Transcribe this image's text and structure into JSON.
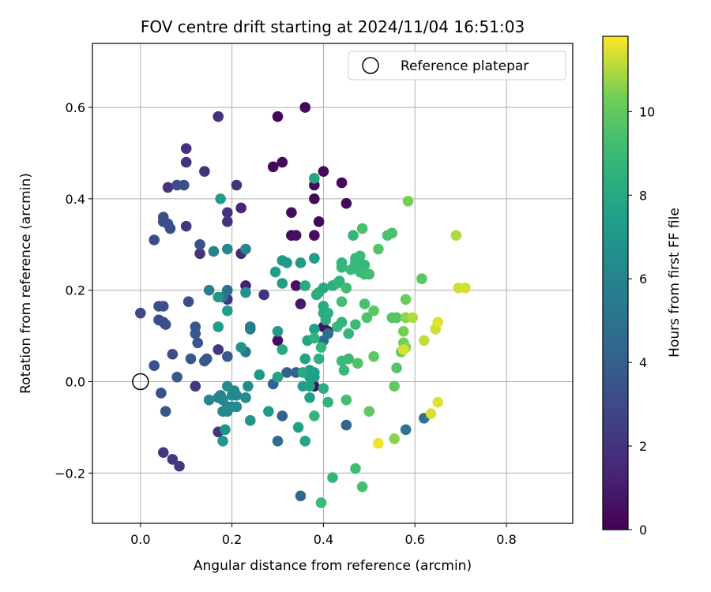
{
  "chart_data": {
    "type": "scatter",
    "title": "FOV centre drift starting at 2024/11/04 16:51:03",
    "xlabel": "Angular distance from reference (arcmin)",
    "ylabel": "Rotation from reference (arcmin)",
    "xlim": [
      -0.105,
      0.945
    ],
    "ylim": [
      -0.31,
      0.74
    ],
    "xticks": [
      0.0,
      0.2,
      0.4,
      0.6,
      0.8
    ],
    "xtick_labels": [
      "0.0",
      "0.2",
      "0.4",
      "0.6",
      "0.8"
    ],
    "yticks": [
      -0.2,
      0.0,
      0.2,
      0.4,
      0.6
    ],
    "ytick_labels": [
      "−0.2",
      "0.0",
      "0.2",
      "0.4",
      "0.6"
    ],
    "grid": true,
    "legend": {
      "placement": "top-right",
      "entries": [
        "Reference platepar"
      ]
    },
    "reference_point": {
      "x": 0.0,
      "y": 0.0,
      "label": "Reference platepar"
    },
    "colorbar": {
      "label": "Hours from first FF file",
      "colormap": "viridis",
      "range": [
        0,
        11.8
      ],
      "ticks": [
        0,
        2,
        4,
        6,
        8,
        10
      ],
      "tick_labels": [
        "0",
        "2",
        "4",
        "6",
        "8",
        "10"
      ]
    },
    "points": [
      {
        "x": 0.36,
        "y": 0.6,
        "h": 0.3
      },
      {
        "x": 0.3,
        "y": 0.58,
        "h": 0.2
      },
      {
        "x": 0.31,
        "y": 0.48,
        "h": 0.3
      },
      {
        "x": 0.29,
        "y": 0.47,
        "h": 0.2
      },
      {
        "x": 0.4,
        "y": 0.46,
        "h": 0.3
      },
      {
        "x": 0.44,
        "y": 0.435,
        "h": 0.3
      },
      {
        "x": 0.38,
        "y": 0.43,
        "h": 0.3
      },
      {
        "x": 0.38,
        "y": 0.4,
        "h": 0.3
      },
      {
        "x": 0.45,
        "y": 0.39,
        "h": 0.3
      },
      {
        "x": 0.33,
        "y": 0.37,
        "h": 0.4
      },
      {
        "x": 0.39,
        "y": 0.35,
        "h": 0.3
      },
      {
        "x": 0.33,
        "y": 0.32,
        "h": 0.4
      },
      {
        "x": 0.34,
        "y": 0.32,
        "h": 0.5
      },
      {
        "x": 0.38,
        "y": 0.32,
        "h": 0.4
      },
      {
        "x": 0.34,
        "y": 0.21,
        "h": 0.6
      },
      {
        "x": 0.35,
        "y": 0.17,
        "h": 0.8
      },
      {
        "x": 0.3,
        "y": 0.09,
        "h": 0.5
      },
      {
        "x": 0.4,
        "y": 0.12,
        "h": 0.6
      },
      {
        "x": 0.41,
        "y": 0.11,
        "h": 0.6
      },
      {
        "x": 0.38,
        "y": -0.01,
        "h": 0.5
      },
      {
        "x": 0.17,
        "y": 0.58,
        "h": 1.8
      },
      {
        "x": 0.1,
        "y": 0.51,
        "h": 1.8
      },
      {
        "x": 0.1,
        "y": 0.48,
        "h": 1.9
      },
      {
        "x": 0.14,
        "y": 0.46,
        "h": 2.0
      },
      {
        "x": 0.06,
        "y": 0.425,
        "h": 2.0
      },
      {
        "x": 0.21,
        "y": 0.43,
        "h": 2.0
      },
      {
        "x": 0.22,
        "y": 0.38,
        "h": 1.4
      },
      {
        "x": 0.19,
        "y": 0.37,
        "h": 2.0
      },
      {
        "x": 0.19,
        "y": 0.35,
        "h": 2.0
      },
      {
        "x": 0.1,
        "y": 0.34,
        "h": 2.1
      },
      {
        "x": 0.22,
        "y": 0.28,
        "h": 1.5
      },
      {
        "x": 0.13,
        "y": 0.28,
        "h": 2.0
      },
      {
        "x": 0.23,
        "y": 0.21,
        "h": 1.2
      },
      {
        "x": 0.27,
        "y": 0.19,
        "h": 2.0
      },
      {
        "x": 0.19,
        "y": 0.18,
        "h": 2.0
      },
      {
        "x": 0.17,
        "y": 0.07,
        "h": 2.2
      },
      {
        "x": 0.12,
        "y": -0.01,
        "h": 2.0
      },
      {
        "x": 0.17,
        "y": -0.11,
        "h": 2.1
      },
      {
        "x": 0.05,
        "y": -0.155,
        "h": 2.1
      },
      {
        "x": 0.07,
        "y": -0.17,
        "h": 2.2
      },
      {
        "x": 0.085,
        "y": -0.185,
        "h": 2.1
      },
      {
        "x": 0.08,
        "y": 0.43,
        "h": 3.2
      },
      {
        "x": 0.095,
        "y": 0.43,
        "h": 3.3
      },
      {
        "x": 0.05,
        "y": 0.36,
        "h": 3.2
      },
      {
        "x": 0.05,
        "y": 0.35,
        "h": 3.2
      },
      {
        "x": 0.06,
        "y": 0.345,
        "h": 3.2
      },
      {
        "x": 0.065,
        "y": 0.335,
        "h": 3.2
      },
      {
        "x": 0.03,
        "y": 0.31,
        "h": 3.1
      },
      {
        "x": 0.13,
        "y": 0.3,
        "h": 3.4
      },
      {
        "x": 0.04,
        "y": 0.165,
        "h": 3.4
      },
      {
        "x": 0.05,
        "y": 0.165,
        "h": 3.3
      },
      {
        "x": 0.105,
        "y": 0.175,
        "h": 3.2
      },
      {
        "x": 0.0,
        "y": 0.15,
        "h": 3.0
      },
      {
        "x": 0.04,
        "y": 0.135,
        "h": 3.2
      },
      {
        "x": 0.05,
        "y": 0.13,
        "h": 3.2
      },
      {
        "x": 0.055,
        "y": 0.125,
        "h": 3.3
      },
      {
        "x": 0.12,
        "y": 0.12,
        "h": 3.6
      },
      {
        "x": 0.12,
        "y": 0.105,
        "h": 3.6
      },
      {
        "x": 0.07,
        "y": 0.06,
        "h": 3.3
      },
      {
        "x": 0.125,
        "y": 0.085,
        "h": 3.5
      },
      {
        "x": 0.03,
        "y": 0.035,
        "h": 3.3
      },
      {
        "x": 0.11,
        "y": 0.05,
        "h": 3.6
      },
      {
        "x": 0.14,
        "y": 0.045,
        "h": 3.7
      },
      {
        "x": 0.145,
        "y": 0.05,
        "h": 3.6
      },
      {
        "x": 0.08,
        "y": 0.01,
        "h": 3.6
      },
      {
        "x": 0.19,
        "y": 0.055,
        "h": 3.8
      },
      {
        "x": 0.045,
        "y": -0.025,
        "h": 3.3
      },
      {
        "x": 0.055,
        "y": -0.065,
        "h": 3.5
      },
      {
        "x": 0.29,
        "y": -0.005,
        "h": 4.1
      },
      {
        "x": 0.32,
        "y": 0.02,
        "h": 4.2
      },
      {
        "x": 0.34,
        "y": 0.02,
        "h": 4.3
      },
      {
        "x": 0.31,
        "y": -0.075,
        "h": 4.2
      },
      {
        "x": 0.35,
        "y": -0.25,
        "h": 4.5
      },
      {
        "x": 0.45,
        "y": -0.095,
        "h": 4.3
      },
      {
        "x": 0.3,
        "y": -0.13,
        "h": 4.7
      },
      {
        "x": 0.58,
        "y": -0.105,
        "h": 5.2
      },
      {
        "x": 0.62,
        "y": -0.08,
        "h": 5.0
      },
      {
        "x": 0.4,
        "y": 0.09,
        "h": 4.5
      },
      {
        "x": 0.41,
        "y": 0.105,
        "h": 4.8
      },
      {
        "x": 0.19,
        "y": 0.2,
        "h": 4.9
      },
      {
        "x": 0.15,
        "y": 0.2,
        "h": 5.6
      },
      {
        "x": 0.18,
        "y": 0.185,
        "h": 5.2
      },
      {
        "x": 0.23,
        "y": 0.065,
        "h": 5.4
      },
      {
        "x": 0.24,
        "y": 0.12,
        "h": 5.4
      },
      {
        "x": 0.24,
        "y": 0.115,
        "h": 5.5
      },
      {
        "x": 0.16,
        "y": 0.285,
        "h": 6.0
      },
      {
        "x": 0.23,
        "y": 0.29,
        "h": 6.1
      },
      {
        "x": 0.19,
        "y": 0.29,
        "h": 6.2
      },
      {
        "x": 0.15,
        "y": -0.04,
        "h": 6.0
      },
      {
        "x": 0.17,
        "y": -0.035,
        "h": 6.1
      },
      {
        "x": 0.175,
        "y": -0.03,
        "h": 6.0
      },
      {
        "x": 0.18,
        "y": -0.04,
        "h": 6.2
      },
      {
        "x": 0.18,
        "y": -0.065,
        "h": 6.2
      },
      {
        "x": 0.19,
        "y": -0.055,
        "h": 6.1
      },
      {
        "x": 0.19,
        "y": -0.065,
        "h": 6.2
      },
      {
        "x": 0.2,
        "y": -0.055,
        "h": 6.2
      },
      {
        "x": 0.2,
        "y": -0.03,
        "h": 6.3
      },
      {
        "x": 0.205,
        "y": -0.02,
        "h": 6.2
      },
      {
        "x": 0.21,
        "y": -0.055,
        "h": 6.3
      },
      {
        "x": 0.21,
        "y": -0.03,
        "h": 6.2
      },
      {
        "x": 0.23,
        "y": -0.035,
        "h": 6.3
      },
      {
        "x": 0.235,
        "y": -0.01,
        "h": 6.4
      },
      {
        "x": 0.24,
        "y": -0.085,
        "h": 6.8
      },
      {
        "x": 0.19,
        "y": -0.01,
        "h": 6.4
      },
      {
        "x": 0.185,
        "y": -0.105,
        "h": 6.8
      },
      {
        "x": 0.18,
        "y": -0.13,
        "h": 7.0
      },
      {
        "x": 0.22,
        "y": 0.075,
        "h": 6.8
      },
      {
        "x": 0.23,
        "y": 0.195,
        "h": 6.7
      },
      {
        "x": 0.19,
        "y": 0.155,
        "h": 7.4
      },
      {
        "x": 0.17,
        "y": 0.12,
        "h": 7.4
      },
      {
        "x": 0.17,
        "y": 0.185,
        "h": 7.0
      },
      {
        "x": 0.175,
        "y": 0.4,
        "h": 7.2
      },
      {
        "x": 0.26,
        "y": 0.015,
        "h": 7.0
      },
      {
        "x": 0.28,
        "y": -0.065,
        "h": 7.2
      },
      {
        "x": 0.295,
        "y": 0.24,
        "h": 7.3
      },
      {
        "x": 0.31,
        "y": 0.265,
        "h": 7.1
      },
      {
        "x": 0.31,
        "y": 0.215,
        "h": 7.3
      },
      {
        "x": 0.32,
        "y": 0.26,
        "h": 7.2
      },
      {
        "x": 0.35,
        "y": 0.26,
        "h": 7.2
      },
      {
        "x": 0.38,
        "y": 0.27,
        "h": 7.4
      },
      {
        "x": 0.3,
        "y": 0.11,
        "h": 7.2
      },
      {
        "x": 0.31,
        "y": 0.07,
        "h": 8.0
      },
      {
        "x": 0.3,
        "y": 0.01,
        "h": 7.6
      },
      {
        "x": 0.345,
        "y": -0.1,
        "h": 7.6
      },
      {
        "x": 0.36,
        "y": -0.13,
        "h": 7.8
      },
      {
        "x": 0.36,
        "y": 0.05,
        "h": 7.6
      },
      {
        "x": 0.37,
        "y": 0.025,
        "h": 7.3
      },
      {
        "x": 0.37,
        "y": 0.01,
        "h": 7.3
      },
      {
        "x": 0.38,
        "y": 0.02,
        "h": 7.4
      },
      {
        "x": 0.38,
        "y": 0.01,
        "h": 7.5
      },
      {
        "x": 0.355,
        "y": -0.01,
        "h": 7.5
      },
      {
        "x": 0.37,
        "y": -0.01,
        "h": 7.6
      },
      {
        "x": 0.37,
        "y": -0.035,
        "h": 7.5
      },
      {
        "x": 0.355,
        "y": 0.02,
        "h": 8.0
      },
      {
        "x": 0.365,
        "y": 0.09,
        "h": 7.8
      },
      {
        "x": 0.38,
        "y": 0.115,
        "h": 7.6
      },
      {
        "x": 0.38,
        "y": 0.445,
        "h": 7.8
      },
      {
        "x": 0.36,
        "y": 0.21,
        "h": 8.2
      },
      {
        "x": 0.385,
        "y": 0.19,
        "h": 8.2
      },
      {
        "x": 0.39,
        "y": 0.195,
        "h": 8.3
      },
      {
        "x": 0.4,
        "y": 0.165,
        "h": 8.1
      },
      {
        "x": 0.4,
        "y": 0.15,
        "h": 8.0
      },
      {
        "x": 0.4,
        "y": 0.205,
        "h": 8.0
      },
      {
        "x": 0.405,
        "y": 0.135,
        "h": 8.3
      },
      {
        "x": 0.41,
        "y": 0.15,
        "h": 8.3
      },
      {
        "x": 0.42,
        "y": 0.21,
        "h": 8.4
      },
      {
        "x": 0.435,
        "y": 0.22,
        "h": 8.5
      },
      {
        "x": 0.43,
        "y": 0.215,
        "h": 8.6
      },
      {
        "x": 0.44,
        "y": 0.26,
        "h": 8.7
      },
      {
        "x": 0.44,
        "y": 0.25,
        "h": 8.8
      },
      {
        "x": 0.46,
        "y": 0.245,
        "h": 8.9
      },
      {
        "x": 0.465,
        "y": 0.32,
        "h": 8.8
      },
      {
        "x": 0.47,
        "y": 0.27,
        "h": 8.9
      },
      {
        "x": 0.47,
        "y": 0.26,
        "h": 8.9
      },
      {
        "x": 0.48,
        "y": 0.275,
        "h": 9.0
      },
      {
        "x": 0.49,
        "y": 0.255,
        "h": 8.9
      },
      {
        "x": 0.49,
        "y": 0.235,
        "h": 9.0
      },
      {
        "x": 0.48,
        "y": 0.24,
        "h": 9.0
      },
      {
        "x": 0.485,
        "y": 0.335,
        "h": 9.4
      },
      {
        "x": 0.5,
        "y": 0.235,
        "h": 9.2
      },
      {
        "x": 0.52,
        "y": 0.29,
        "h": 9.6
      },
      {
        "x": 0.54,
        "y": 0.32,
        "h": 9.4
      },
      {
        "x": 0.55,
        "y": 0.325,
        "h": 9.4
      },
      {
        "x": 0.585,
        "y": 0.395,
        "h": 10.4
      },
      {
        "x": 0.615,
        "y": 0.225,
        "h": 9.8
      },
      {
        "x": 0.39,
        "y": 0.05,
        "h": 8.4
      },
      {
        "x": 0.38,
        "y": 0.095,
        "h": 8.6
      },
      {
        "x": 0.395,
        "y": 0.075,
        "h": 8.8
      },
      {
        "x": 0.41,
        "y": -0.045,
        "h": 8.6
      },
      {
        "x": 0.38,
        "y": -0.075,
        "h": 8.8
      },
      {
        "x": 0.4,
        "y": -0.015,
        "h": 8.3
      },
      {
        "x": 0.42,
        "y": -0.21,
        "h": 8.8
      },
      {
        "x": 0.395,
        "y": -0.265,
        "h": 9.0
      },
      {
        "x": 0.44,
        "y": 0.045,
        "h": 9.0
      },
      {
        "x": 0.445,
        "y": 0.025,
        "h": 8.9
      },
      {
        "x": 0.455,
        "y": 0.05,
        "h": 9.0
      },
      {
        "x": 0.455,
        "y": 0.105,
        "h": 8.8
      },
      {
        "x": 0.47,
        "y": 0.125,
        "h": 9.0
      },
      {
        "x": 0.44,
        "y": 0.13,
        "h": 8.7
      },
      {
        "x": 0.43,
        "y": 0.12,
        "h": 8.9
      },
      {
        "x": 0.44,
        "y": 0.175,
        "h": 9.2
      },
      {
        "x": 0.45,
        "y": 0.205,
        "h": 9.1
      },
      {
        "x": 0.45,
        "y": -0.04,
        "h": 9.3
      },
      {
        "x": 0.475,
        "y": 0.04,
        "h": 9.5
      },
      {
        "x": 0.47,
        "y": -0.19,
        "h": 9.2
      },
      {
        "x": 0.485,
        "y": -0.23,
        "h": 9.3
      },
      {
        "x": 0.49,
        "y": 0.17,
        "h": 9.4
      },
      {
        "x": 0.495,
        "y": 0.14,
        "h": 9.5
      },
      {
        "x": 0.51,
        "y": 0.155,
        "h": 9.8
      },
      {
        "x": 0.51,
        "y": 0.055,
        "h": 9.9
      },
      {
        "x": 0.5,
        "y": -0.065,
        "h": 10.0
      },
      {
        "x": 0.55,
        "y": 0.14,
        "h": 9.6
      },
      {
        "x": 0.56,
        "y": 0.14,
        "h": 9.7
      },
      {
        "x": 0.56,
        "y": 0.03,
        "h": 9.7
      },
      {
        "x": 0.555,
        "y": -0.01,
        "h": 10.0
      },
      {
        "x": 0.57,
        "y": 0.065,
        "h": 10.1
      },
      {
        "x": 0.575,
        "y": 0.085,
        "h": 10.3
      },
      {
        "x": 0.58,
        "y": 0.075,
        "h": 10.6
      },
      {
        "x": 0.575,
        "y": 0.11,
        "h": 10.4
      },
      {
        "x": 0.58,
        "y": 0.18,
        "h": 10.2
      },
      {
        "x": 0.58,
        "y": 0.14,
        "h": 10.6
      },
      {
        "x": 0.595,
        "y": 0.14,
        "h": 11.0
      },
      {
        "x": 0.555,
        "y": -0.125,
        "h": 10.6
      },
      {
        "x": 0.575,
        "y": 0.07,
        "h": 11.4
      },
      {
        "x": 0.52,
        "y": -0.135,
        "h": 11.6
      },
      {
        "x": 0.62,
        "y": 0.09,
        "h": 11.2
      },
      {
        "x": 0.645,
        "y": 0.115,
        "h": 11.3
      },
      {
        "x": 0.65,
        "y": 0.13,
        "h": 11.5
      },
      {
        "x": 0.635,
        "y": -0.07,
        "h": 11.4
      },
      {
        "x": 0.65,
        "y": -0.045,
        "h": 11.5
      },
      {
        "x": 0.69,
        "y": 0.32,
        "h": 11.0
      },
      {
        "x": 0.695,
        "y": 0.205,
        "h": 11.3
      },
      {
        "x": 0.71,
        "y": 0.205,
        "h": 11.4
      }
    ]
  }
}
